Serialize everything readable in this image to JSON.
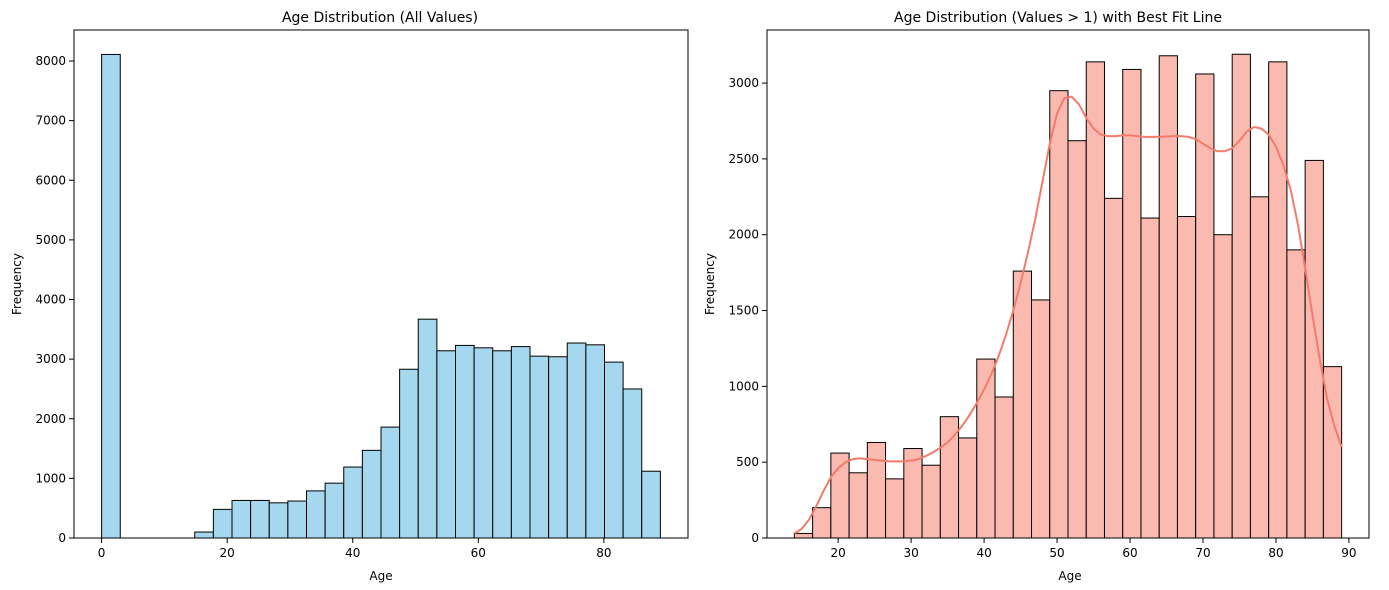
{
  "chart_data": [
    {
      "type": "bar",
      "title": "Age Distribution (All Values)",
      "xlabel": "Age",
      "ylabel": "Frequency",
      "color": "#a5d8ef",
      "edgecolor": "#000000",
      "xlim": [
        -4.4,
        93.4
      ],
      "ylim": [
        0,
        8520
      ],
      "xticks": [
        0,
        20,
        40,
        60,
        80
      ],
      "yticks": [
        0,
        1000,
        2000,
        3000,
        4000,
        5000,
        6000,
        7000,
        8000
      ],
      "bins": [
        {
          "x0": 0.0,
          "x1": 2.967,
          "value": 8110
        },
        {
          "x0": 2.967,
          "x1": 5.933,
          "value": 0
        },
        {
          "x0": 5.933,
          "x1": 8.9,
          "value": 0
        },
        {
          "x0": 8.9,
          "x1": 11.867,
          "value": 0
        },
        {
          "x0": 11.867,
          "x1": 14.833,
          "value": 0
        },
        {
          "x0": 14.833,
          "x1": 17.8,
          "value": 100
        },
        {
          "x0": 17.8,
          "x1": 20.767,
          "value": 480
        },
        {
          "x0": 20.767,
          "x1": 23.733,
          "value": 630
        },
        {
          "x0": 23.733,
          "x1": 26.7,
          "value": 630
        },
        {
          "x0": 26.7,
          "x1": 29.667,
          "value": 590
        },
        {
          "x0": 29.667,
          "x1": 32.633,
          "value": 620
        },
        {
          "x0": 32.633,
          "x1": 35.6,
          "value": 790
        },
        {
          "x0": 35.6,
          "x1": 38.567,
          "value": 920
        },
        {
          "x0": 38.567,
          "x1": 41.533,
          "value": 1190
        },
        {
          "x0": 41.533,
          "x1": 44.5,
          "value": 1470
        },
        {
          "x0": 44.5,
          "x1": 47.467,
          "value": 1860
        },
        {
          "x0": 47.467,
          "x1": 50.433,
          "value": 2830
        },
        {
          "x0": 50.433,
          "x1": 53.4,
          "value": 3670
        },
        {
          "x0": 53.4,
          "x1": 56.367,
          "value": 3140
        },
        {
          "x0": 56.367,
          "x1": 59.333,
          "value": 3230
        },
        {
          "x0": 59.333,
          "x1": 62.3,
          "value": 3190
        },
        {
          "x0": 62.3,
          "x1": 65.267,
          "value": 3140
        },
        {
          "x0": 65.267,
          "x1": 68.233,
          "value": 3210
        },
        {
          "x0": 68.233,
          "x1": 71.2,
          "value": 3050
        },
        {
          "x0": 71.2,
          "x1": 74.167,
          "value": 3040
        },
        {
          "x0": 74.167,
          "x1": 77.133,
          "value": 3270
        },
        {
          "x0": 77.133,
          "x1": 80.1,
          "value": 3240
        },
        {
          "x0": 80.1,
          "x1": 83.067,
          "value": 2950
        },
        {
          "x0": 83.067,
          "x1": 86.033,
          "value": 2500
        },
        {
          "x0": 86.033,
          "x1": 89.0,
          "value": 1120
        }
      ]
    },
    {
      "type": "bar",
      "title": "Age Distribution (Values > 1) with Best Fit Line",
      "xlabel": "Age",
      "ylabel": "Frequency",
      "color": "#fbbab0",
      "edgecolor": "#000000",
      "line_color": "#f47b6b",
      "xlim": [
        10.25,
        92.75
      ],
      "ylim": [
        0,
        3350
      ],
      "xticks": [
        20,
        30,
        40,
        50,
        60,
        70,
        80,
        90
      ],
      "yticks": [
        0,
        500,
        1000,
        1500,
        2000,
        2500,
        3000
      ],
      "bins": [
        {
          "x0": 14.0,
          "x1": 16.5,
          "value": 30
        },
        {
          "x0": 16.5,
          "x1": 19.0,
          "value": 200
        },
        {
          "x0": 19.0,
          "x1": 21.5,
          "value": 560
        },
        {
          "x0": 21.5,
          "x1": 24.0,
          "value": 430
        },
        {
          "x0": 24.0,
          "x1": 26.5,
          "value": 630
        },
        {
          "x0": 26.5,
          "x1": 29.0,
          "value": 390
        },
        {
          "x0": 29.0,
          "x1": 31.5,
          "value": 590
        },
        {
          "x0": 31.5,
          "x1": 34.0,
          "value": 480
        },
        {
          "x0": 34.0,
          "x1": 36.5,
          "value": 800
        },
        {
          "x0": 36.5,
          "x1": 39.0,
          "value": 660
        },
        {
          "x0": 39.0,
          "x1": 41.5,
          "value": 1180
        },
        {
          "x0": 41.5,
          "x1": 44.0,
          "value": 930
        },
        {
          "x0": 44.0,
          "x1": 46.5,
          "value": 1760
        },
        {
          "x0": 46.5,
          "x1": 49.0,
          "value": 1570
        },
        {
          "x0": 49.0,
          "x1": 51.5,
          "value": 2950
        },
        {
          "x0": 51.5,
          "x1": 54.0,
          "value": 2620
        },
        {
          "x0": 54.0,
          "x1": 56.5,
          "value": 3140
        },
        {
          "x0": 56.5,
          "x1": 59.0,
          "value": 2240
        },
        {
          "x0": 59.0,
          "x1": 61.5,
          "value": 3090
        },
        {
          "x0": 61.5,
          "x1": 64.0,
          "value": 2110
        },
        {
          "x0": 64.0,
          "x1": 66.5,
          "value": 3180
        },
        {
          "x0": 66.5,
          "x1": 69.0,
          "value": 2120
        },
        {
          "x0": 69.0,
          "x1": 71.5,
          "value": 3060
        },
        {
          "x0": 71.5,
          "x1": 74.0,
          "value": 2000
        },
        {
          "x0": 74.0,
          "x1": 76.5,
          "value": 3190
        },
        {
          "x0": 76.5,
          "x1": 79.0,
          "value": 2250
        },
        {
          "x0": 79.0,
          "x1": 81.5,
          "value": 3140
        },
        {
          "x0": 81.5,
          "x1": 84.0,
          "value": 1900
        },
        {
          "x0": 84.0,
          "x1": 86.5,
          "value": 2490
        },
        {
          "x0": 86.5,
          "x1": 89.0,
          "value": 1130
        }
      ],
      "fit_line": {
        "x": [
          14,
          15,
          16,
          17,
          18,
          19,
          20,
          21,
          22,
          23,
          24,
          25,
          26,
          27,
          28,
          29,
          30,
          31,
          32,
          33,
          34,
          35,
          36,
          37,
          38,
          39,
          40,
          41,
          42,
          43,
          44,
          45,
          46,
          47,
          48,
          49,
          50,
          51,
          52,
          53,
          54,
          55,
          56,
          57,
          58,
          59,
          60,
          61,
          62,
          63,
          64,
          65,
          66,
          67,
          68,
          69,
          70,
          71,
          72,
          73,
          74,
          75,
          76,
          77,
          78,
          79,
          80,
          81,
          82,
          83,
          84,
          85,
          86,
          87,
          88,
          89
        ],
        "y": [
          30,
          60,
          120,
          210,
          310,
          400,
          460,
          500,
          520,
          525,
          520,
          515,
          510,
          505,
          505,
          505,
          510,
          520,
          540,
          565,
          595,
          630,
          680,
          740,
          810,
          890,
          980,
          1080,
          1200,
          1340,
          1500,
          1680,
          1880,
          2100,
          2350,
          2600,
          2800,
          2900,
          2910,
          2860,
          2770,
          2700,
          2660,
          2650,
          2650,
          2655,
          2655,
          2650,
          2645,
          2645,
          2645,
          2648,
          2650,
          2650,
          2645,
          2630,
          2600,
          2570,
          2550,
          2550,
          2570,
          2620,
          2680,
          2710,
          2700,
          2660,
          2580,
          2460,
          2300,
          2070,
          1780,
          1470,
          1180,
          920,
          740,
          600
        ]
      }
    }
  ]
}
